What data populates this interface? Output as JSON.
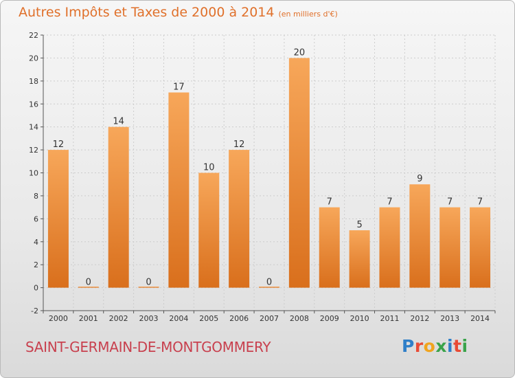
{
  "title": "Autres Impôts et Taxes de 2000 à 2014",
  "unit": "(en milliers d'€)",
  "commune": "SAINT-GERMAIN-DE-MONTGOMMERY",
  "logo": {
    "letters": [
      "P",
      "r",
      "o",
      "x",
      "i",
      "t",
      "i"
    ],
    "colors": [
      "#2f7fc8",
      "#e94b35",
      "#f0a41f",
      "#3aa34a",
      "#2f7fc8",
      "#e94b35",
      "#3aa34a"
    ]
  },
  "colors": {
    "title": "#e0702a",
    "commune": "#c8404e",
    "bar_top": "#f7a75a",
    "bar_bottom": "#d96f1c"
  },
  "chart_data": {
    "type": "bar",
    "title": "Autres Impôts et Taxes de 2000 à 2014",
    "subtitle": "(en milliers d'€)",
    "xlabel": "",
    "ylabel": "",
    "categories": [
      "2000",
      "2001",
      "2002",
      "2003",
      "2004",
      "2005",
      "2006",
      "2007",
      "2008",
      "2009",
      "2010",
      "2011",
      "2012",
      "2013",
      "2014"
    ],
    "values": [
      12,
      0,
      14,
      0,
      17,
      10,
      12,
      0,
      20,
      7,
      5,
      7,
      9,
      7,
      7
    ],
    "ylim": [
      -2,
      22
    ],
    "yticks": [
      -2,
      0,
      2,
      4,
      6,
      8,
      10,
      12,
      14,
      16,
      18,
      20,
      22
    ],
    "grid": true
  }
}
